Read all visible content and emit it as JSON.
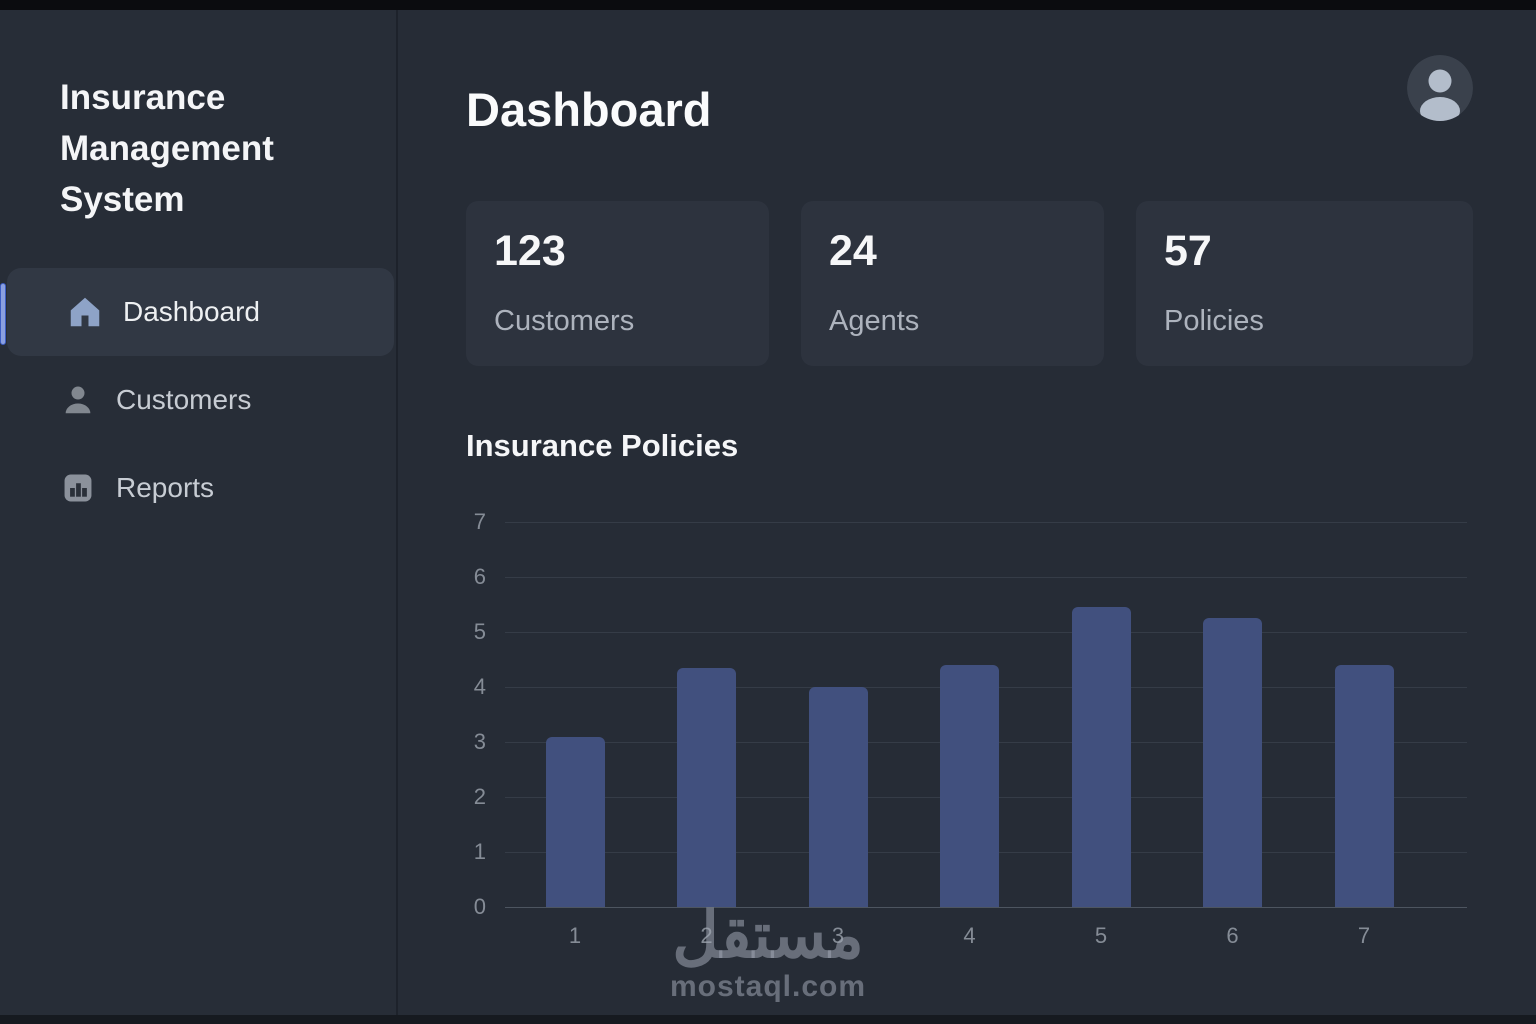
{
  "app": {
    "title": "Insurance Management System"
  },
  "sidebar": {
    "items": [
      {
        "label": "Dashboard",
        "icon": "home-icon",
        "active": true
      },
      {
        "label": "Customers",
        "icon": "person-icon",
        "active": false
      },
      {
        "label": "Reports",
        "icon": "bar-chart-icon",
        "active": false
      }
    ]
  },
  "header": {
    "title": "Dashboard"
  },
  "stats": [
    {
      "value": "123",
      "label": "Customers"
    },
    {
      "value": "24",
      "label": "Agents"
    },
    {
      "value": "57",
      "label": "Policies"
    }
  ],
  "section": {
    "title": "Insurance Policies"
  },
  "chart_data": {
    "type": "bar",
    "title": "Insurance Policies",
    "categories": [
      "1",
      "2",
      "3",
      "4",
      "5",
      "6",
      "7"
    ],
    "values": [
      3.1,
      4.35,
      4.0,
      4.4,
      5.45,
      5.25,
      4.4
    ],
    "xlabel": "",
    "ylabel": "",
    "ylim": [
      0,
      7
    ],
    "yticks": [
      0,
      1,
      2,
      3,
      4,
      5,
      6,
      7
    ],
    "grid": true,
    "legend": "none",
    "bar_color": "#41507e"
  },
  "watermark": {
    "arabic": "مستقل",
    "domain": "mostaql.com"
  },
  "colors": {
    "page-bg": "#262c36",
    "sidebar-bg": "#272d37",
    "active-bg": "#313844",
    "card-bg": "#2d333e",
    "bar-color": "#41507e",
    "accent-blue": "#6c85d6"
  }
}
